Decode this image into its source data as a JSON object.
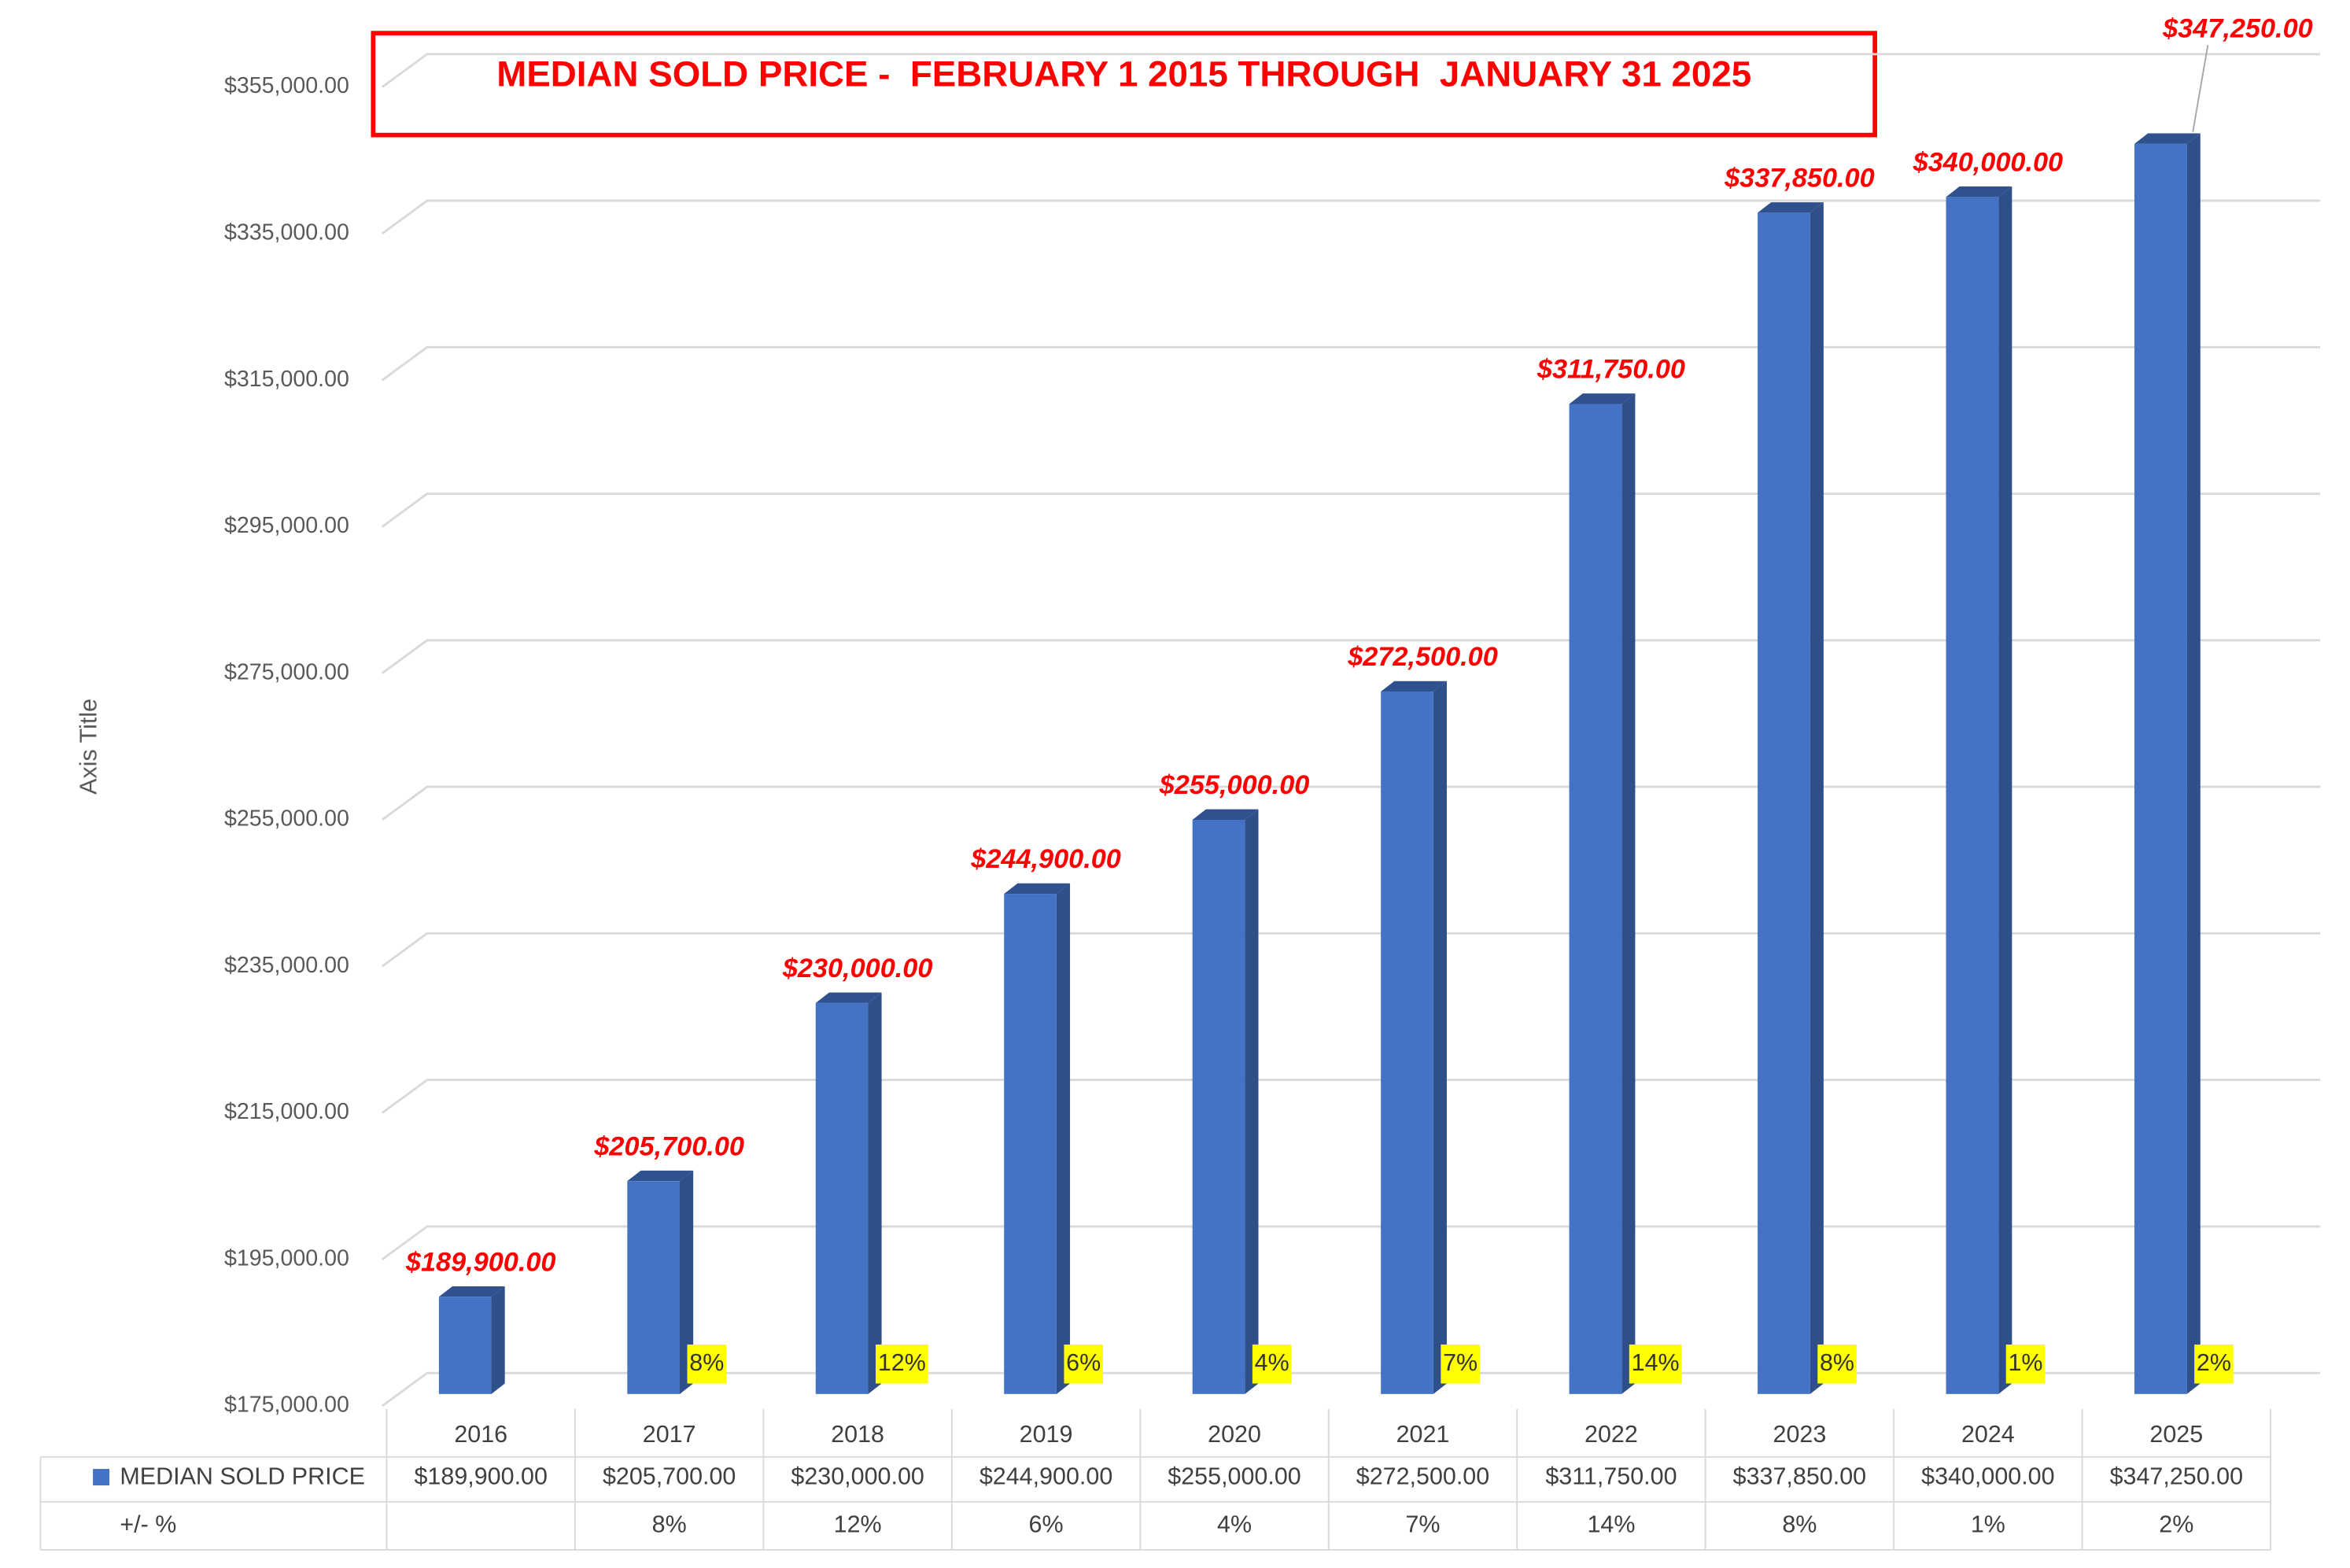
{
  "chart_data": {
    "type": "bar3d",
    "title": "MEDIAN SOLD PRICE -  FEBRUARY 1 2015 THROUGH  JANUARY 31 2025",
    "y_axis_label": "Axis Title",
    "categories": [
      "2016",
      "2017",
      "2018",
      "2019",
      "2020",
      "2021",
      "2022",
      "2023",
      "2024",
      "2025"
    ],
    "series": [
      {
        "name": "MEDIAN SOLD PRICE",
        "color": "#4472c4",
        "values": [
          189900,
          205700,
          230000,
          244900,
          255000,
          272500,
          311750,
          337850,
          340000,
          347250
        ],
        "value_labels": [
          "$189,900.00",
          "$205,700.00",
          "$230,000.00",
          "$244,900.00",
          "$255,000.00",
          "$272,500.00",
          "$311,750.00",
          "$337,850.00",
          "$340,000.00",
          "$347,250.00"
        ]
      }
    ],
    "change_row_name": "+/- %",
    "change_values": [
      null,
      8,
      12,
      6,
      4,
      7,
      14,
      8,
      1,
      2
    ],
    "change_labels": [
      null,
      "8%",
      "12%",
      "6%",
      "4%",
      "7%",
      "14%",
      "8%",
      "1%",
      "2%"
    ],
    "ylim": [
      175000,
      355000
    ],
    "yticks": [
      {
        "value": 175000,
        "label": "$175,000.00"
      },
      {
        "value": 195000,
        "label": "$195,000.00"
      },
      {
        "value": 215000,
        "label": "$215,000.00"
      },
      {
        "value": 235000,
        "label": "$235,000.00"
      },
      {
        "value": 255000,
        "label": "$255,000.00"
      },
      {
        "value": 275000,
        "label": "$275,000.00"
      },
      {
        "value": 295000,
        "label": "$295,000.00"
      },
      {
        "value": 315000,
        "label": "$315,000.00"
      },
      {
        "value": 335000,
        "label": "$335,000.00"
      },
      {
        "value": 355000,
        "label": "$355,000.00"
      }
    ],
    "grid": true
  }
}
